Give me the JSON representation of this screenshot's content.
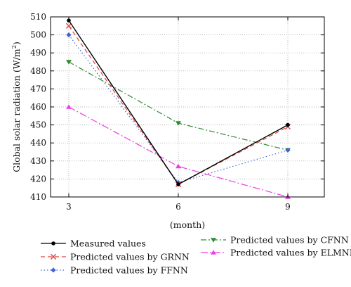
{
  "chart_data": {
    "type": "line",
    "xlabel": "(month)",
    "ylabel": "Global solar radiation (W/m",
    "ylabel_sup": "2",
    "ylabel_close": ")",
    "x": [
      3,
      6,
      9
    ],
    "x_ticks": [
      "3",
      "6",
      "9"
    ],
    "y_ticks": [
      "410",
      "420",
      "430",
      "440",
      "450",
      "460",
      "470",
      "480",
      "490",
      "500",
      "510"
    ],
    "xlim": [
      2.5,
      10.0
    ],
    "ylim": [
      410,
      510
    ],
    "grid": true,
    "legend_placement": "bottom",
    "series": [
      {
        "name": "Measured values",
        "values": [
          508,
          417,
          450
        ],
        "color": "#000000",
        "dash": "",
        "marker": "dot"
      },
      {
        "name": "Predicted values by GRNN",
        "values": [
          505,
          417,
          449
        ],
        "color": "#e0413c",
        "dash": "6,4",
        "marker": "x"
      },
      {
        "name": "Predicted values by FFNN",
        "values": [
          500,
          418,
          436
        ],
        "color": "#3f63d6",
        "dash": "1.5,3",
        "marker": "diamond"
      },
      {
        "name": "Predicted values by CFNN",
        "values": [
          485,
          451,
          436
        ],
        "color": "#2e8b2e",
        "dash": "8,3,2,3",
        "marker": "tri-down"
      },
      {
        "name": "Predicted values by ELMNN",
        "values": [
          460,
          427,
          410
        ],
        "color": "#ee3be6",
        "dash": "10,3,2,3",
        "marker": "tri-up"
      }
    ]
  }
}
